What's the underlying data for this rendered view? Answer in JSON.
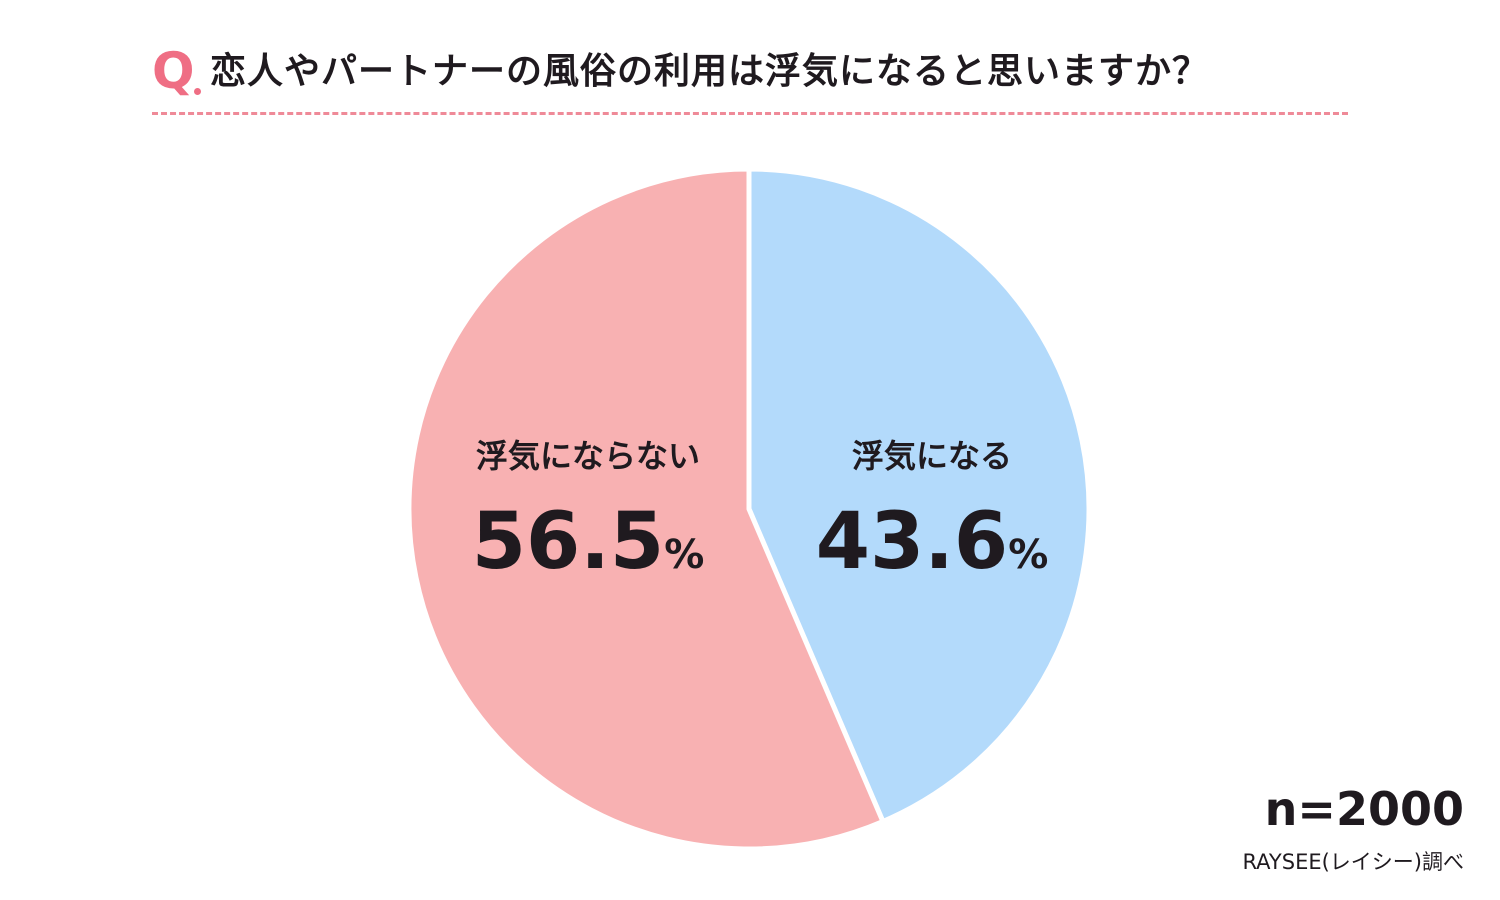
{
  "header": {
    "q_mark": "Q",
    "title": "恋人やパートナーの風俗の利用は浮気になると思いますか？"
  },
  "chart_data": {
    "type": "pie",
    "title": "恋人やパートナーの風俗の利用は浮気になると思いますか？",
    "slices": [
      {
        "label": "浮気になる",
        "value": 43.6,
        "value_text": "43.6",
        "unit": "%",
        "color": "#b3dafb"
      },
      {
        "label": "浮気にならない",
        "value": 56.5,
        "value_text": "56.5",
        "unit": "%",
        "color": "#f8b1b2"
      }
    ],
    "start_angle_deg": 0,
    "direction": "clockwise"
  },
  "footer": {
    "sample_size": "n=2000",
    "source": "RAYSEE(レイシー)調べ"
  }
}
